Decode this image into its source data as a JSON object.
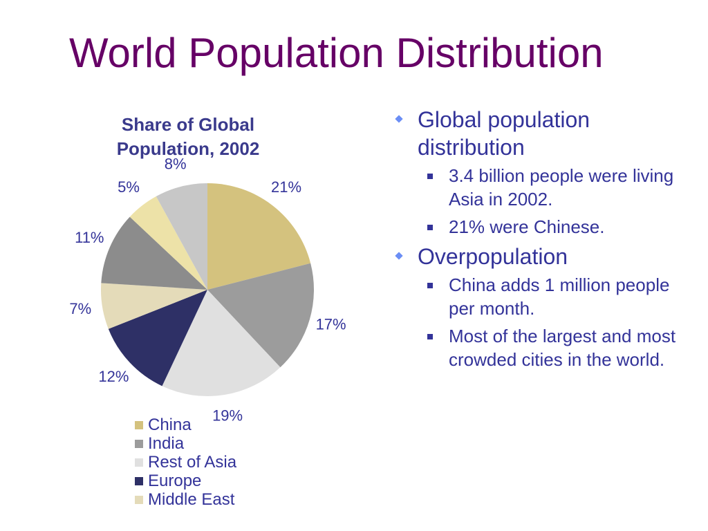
{
  "slide": {
    "title": "World Population Distribution"
  },
  "chart_data": {
    "type": "pie",
    "title": "Share of Global Population, 2002",
    "slices": [
      {
        "name": "China",
        "value": 21,
        "label": "21%",
        "color": "#d4c27e"
      },
      {
        "name": "India",
        "value": 17,
        "label": "17%",
        "color": "#9c9c9c"
      },
      {
        "name": "Rest of Asia",
        "value": 19,
        "label": "19%",
        "color": "#e0e0e0"
      },
      {
        "name": "Europe",
        "value": 12,
        "label": "12%",
        "color": "#2e3066"
      },
      {
        "name": "Middle East",
        "value": 7,
        "label": "7%",
        "color": "#e4dbb9"
      },
      {
        "value": 11,
        "label": "11%",
        "color": "#8c8c8c"
      },
      {
        "value": 5,
        "label": "5%",
        "color": "#ede2a8"
      },
      {
        "value": 8,
        "label": "8%",
        "color": "#c7c7c7"
      }
    ],
    "legend": [
      "China",
      "India",
      "Rest of Asia",
      "Europe",
      "Middle East"
    ],
    "legend_placement": "bottom"
  },
  "bullets": [
    {
      "text": "Global population distribution",
      "icon": "diamond-bullet-icon",
      "sub": [
        "3.4 billion people were living Asia in 2002.",
        "21% were Chinese."
      ]
    },
    {
      "text": "Overpopulation",
      "icon": "diamond-bullet-icon",
      "sub": [
        "China adds 1 million people per month.",
        "Most of the largest and most crowded cities in the world."
      ]
    }
  ],
  "colors": {
    "title": "#660066",
    "text": "#333399",
    "bullet_diamond": "#6b8ef5"
  }
}
